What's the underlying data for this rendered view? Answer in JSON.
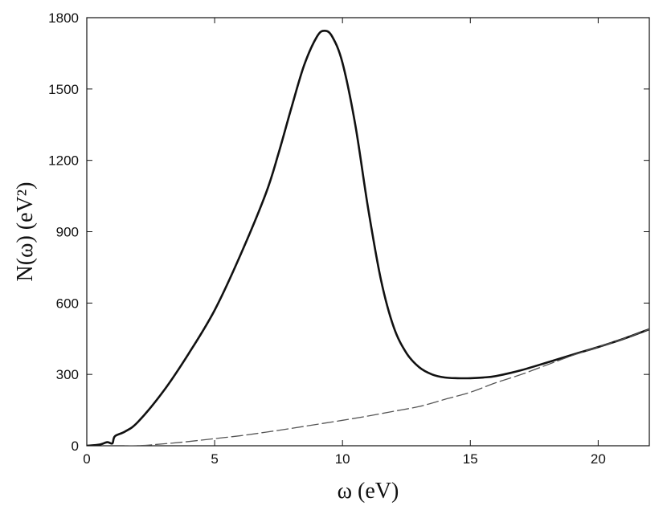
{
  "chart_data": {
    "type": "line",
    "xlabel": "ω (eV)",
    "ylabel": "N(ω) (eV²)",
    "xlim": [
      0,
      22
    ],
    "ylim": [
      0,
      1800
    ],
    "xticks": [
      0,
      5,
      10,
      15,
      20
    ],
    "yticks": [
      0,
      300,
      600,
      900,
      1200,
      1500,
      1800
    ],
    "grid": false,
    "series": [
      {
        "style": "solid",
        "color": "#111111",
        "x": [
          0,
          0.5,
          0.8,
          1.0,
          1.1,
          1.5,
          2.0,
          3.0,
          4.0,
          5.0,
          6.0,
          7.0,
          7.5,
          8.0,
          8.5,
          9.0,
          9.3,
          9.6,
          10.0,
          10.5,
          11.0,
          11.5,
          12.0,
          12.5,
          13.0,
          13.5,
          14.0,
          14.5,
          15.0,
          15.5,
          16.0,
          17.0,
          18.0,
          19.0,
          20.0,
          21.0,
          22.0
        ],
        "y": [
          0,
          5,
          15,
          10,
          40,
          60,
          100,
          230,
          390,
          570,
          800,
          1060,
          1230,
          1420,
          1600,
          1720,
          1745,
          1720,
          1610,
          1350,
          1000,
          700,
          500,
          390,
          330,
          300,
          287,
          284,
          284,
          287,
          293,
          318,
          350,
          383,
          415,
          450,
          490
        ]
      },
      {
        "style": "dashed",
        "color": "#555555",
        "x": [
          1.5,
          2,
          3,
          4,
          5,
          6,
          7,
          8,
          9,
          10,
          11,
          12,
          13,
          14,
          15,
          16,
          17,
          18,
          19,
          20,
          21,
          22
        ],
        "y": [
          0,
          0,
          8,
          18,
          30,
          42,
          57,
          73,
          90,
          107,
          125,
          145,
          165,
          195,
          225,
          265,
          300,
          340,
          380,
          415,
          450,
          490
        ]
      }
    ]
  }
}
